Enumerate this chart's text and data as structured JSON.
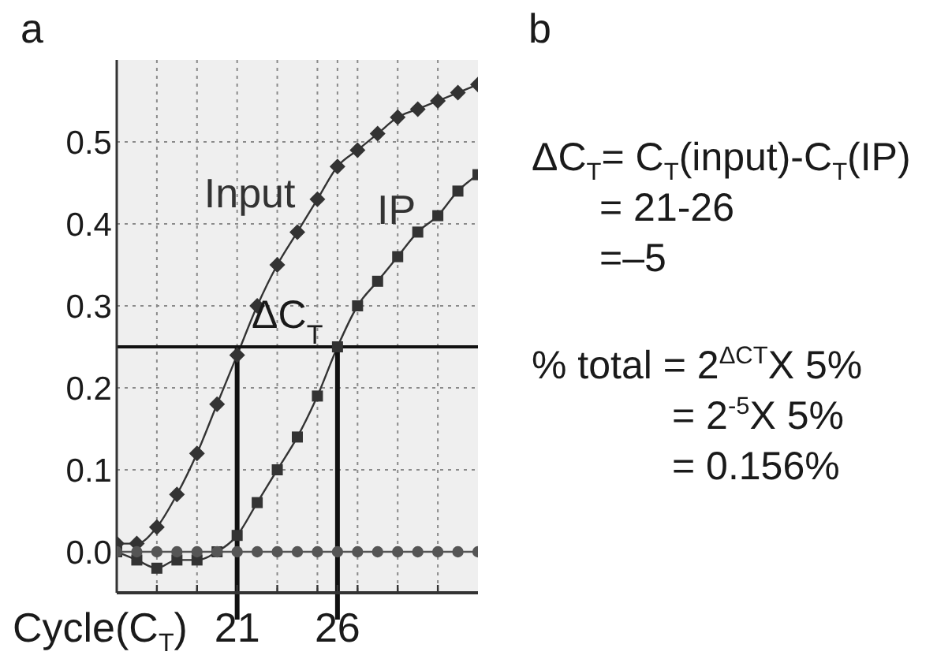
{
  "chart_data": [
    {
      "type": "line",
      "title": "a",
      "xlabel": "Cycle(C$_{T}$)",
      "x": [
        15,
        16,
        17,
        18,
        19,
        20,
        21,
        22,
        23,
        24,
        25,
        26,
        27,
        28,
        29,
        30,
        31,
        32,
        33
      ],
      "series": [
        {
          "name": "Input",
          "color": "#333333",
          "marker": "diamond",
          "values": [
            0.01,
            0.01,
            0.03,
            0.07,
            0.12,
            0.18,
            0.24,
            0.3,
            0.35,
            0.39,
            0.43,
            0.47,
            0.49,
            0.51,
            0.53,
            0.54,
            0.55,
            0.56,
            0.57
          ]
        },
        {
          "name": "IP",
          "color": "#333333",
          "marker": "square",
          "values": [
            0.0,
            -0.01,
            -0.02,
            -0.01,
            -0.01,
            0.0,
            0.02,
            0.06,
            0.1,
            0.14,
            0.19,
            0.25,
            0.3,
            0.33,
            0.36,
            0.39,
            0.41,
            0.44,
            0.46
          ]
        },
        {
          "color": "#555555",
          "marker": "circle",
          "values": [
            0,
            0,
            0,
            0,
            0,
            0,
            0,
            0,
            0,
            0,
            0,
            0,
            0,
            0,
            0,
            0,
            0,
            0,
            0
          ]
        }
      ],
      "xlim": [
        15,
        33
      ],
      "xticks": [
        {
          "value": 17,
          "label": null
        },
        {
          "value": 19,
          "label": null
        },
        21,
        {
          "value": 23,
          "label": null
        },
        {
          "value": 25,
          "label": null
        },
        26,
        {
          "value": 27,
          "label": null
        },
        {
          "value": 29,
          "label": null
        },
        {
          "value": 31,
          "label": null
        }
      ],
      "ylim": [
        -0.05,
        0.6
      ],
      "yticks": [
        {
          "value": 0,
          "label": "0.0"
        },
        0.1,
        0.2,
        0.3,
        0.4,
        0.5
      ],
      "grid": true,
      "ref_lines": [
        {
          "axis": "y",
          "value": 0.25,
          "color": "#111111"
        },
        {
          "axis": "x",
          "value": 21,
          "color": "#111111"
        },
        {
          "axis": "x",
          "value": 26,
          "color": "#111111"
        }
      ],
      "annotations": [
        {
          "text": "ΔC$_{T}$",
          "x": 23.5,
          "y": 0.25
        }
      ]
    },
    {
      "type": "other",
      "title": "b",
      "annotations": [
        "ΔC$_{T}$= C$_{T}$(input)-C$_{T}$(IP)",
        "= 21-26",
        "=–5",
        "% total = 2$^{ΔCT}$X 5%",
        "= 2$^{-5}$X 5%",
        "= 0.156%"
      ]
    }
  ]
}
